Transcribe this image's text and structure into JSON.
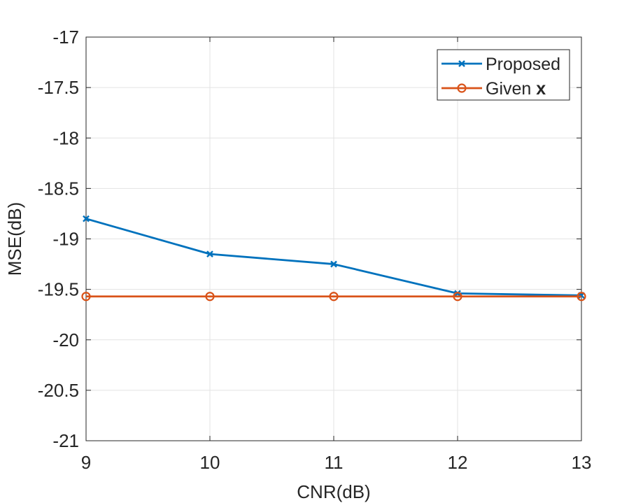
{
  "chart_data": {
    "type": "line",
    "title": "",
    "xlabel": "CNR(dB)",
    "ylabel": "MSE(dB)",
    "xlim": [
      9,
      13
    ],
    "ylim": [
      -21,
      -17
    ],
    "x_ticks": [
      9,
      10,
      11,
      12,
      13
    ],
    "y_ticks": [
      -17,
      -17.5,
      -18,
      -18.5,
      -19,
      -19.5,
      -20,
      -20.5,
      -21
    ],
    "x_tick_labels": [
      "9",
      "10",
      "11",
      "12",
      "13"
    ],
    "y_tick_labels": [
      "-17",
      "-17.5",
      "-18",
      "-18.5",
      "-19",
      "-19.5",
      "-20",
      "-20.5",
      "-21"
    ],
    "grid": true,
    "legend_position": "top-right",
    "x": [
      9,
      10,
      11,
      12,
      13
    ],
    "series": [
      {
        "name": "Proposed",
        "label_main": "Proposed",
        "label_bold": "",
        "marker": "x",
        "color": "#0072BD",
        "values": [
          -18.8,
          -19.15,
          -19.25,
          -19.54,
          -19.56
        ]
      },
      {
        "name": "Given x",
        "label_main": "Given ",
        "label_bold": "x",
        "marker": "o",
        "color": "#D95319",
        "values": [
          -19.57,
          -19.57,
          -19.57,
          -19.57,
          -19.57
        ]
      }
    ]
  }
}
